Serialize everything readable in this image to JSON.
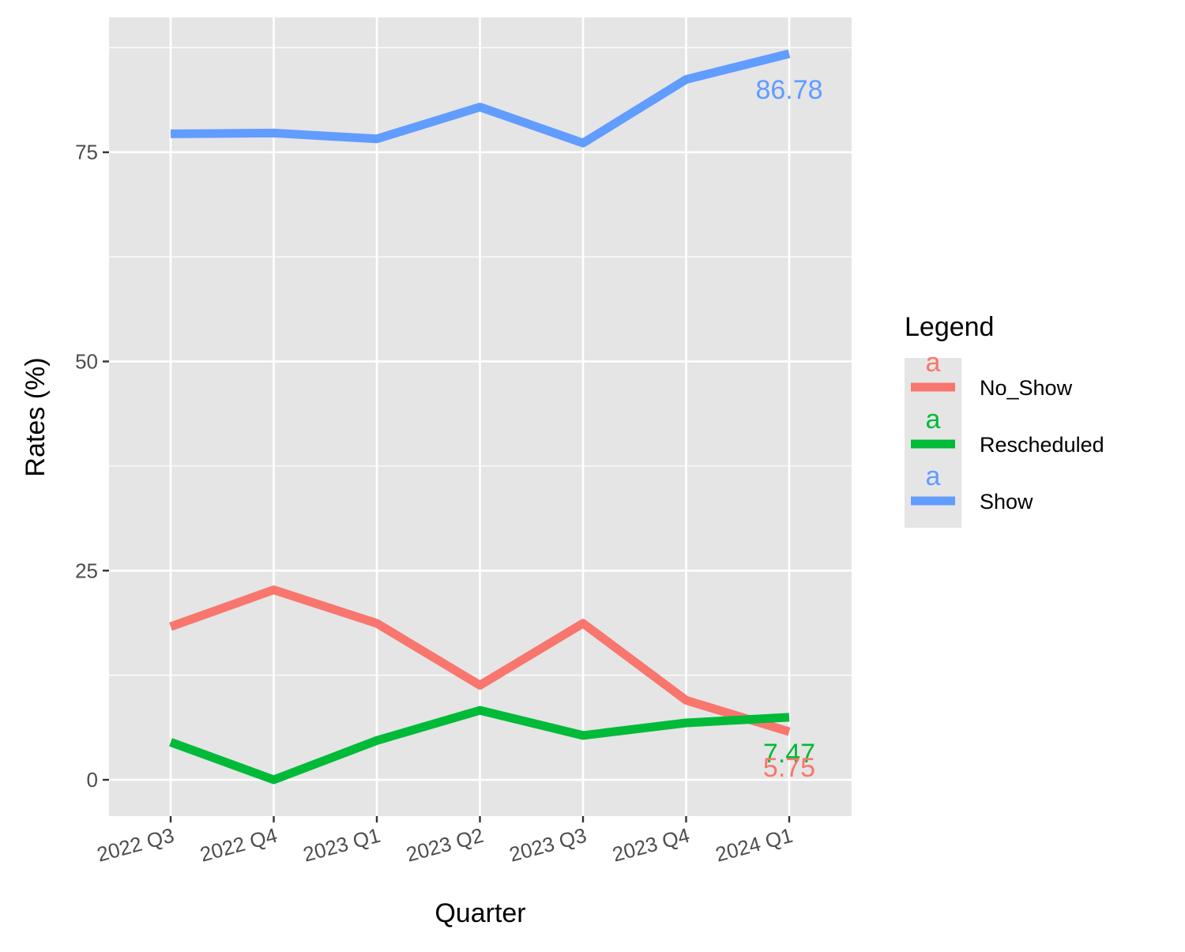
{
  "chart_data": {
    "type": "line",
    "categories": [
      "2022 Q3",
      "2022 Q4",
      "2023 Q1",
      "2023 Q2",
      "2023 Q3",
      "2023 Q4",
      "2024 Q1"
    ],
    "series": [
      {
        "name": "No_Show",
        "color": "#F8766D",
        "values": [
          18.3,
          22.7,
          18.7,
          11.3,
          18.7,
          9.5,
          5.75
        ]
      },
      {
        "name": "Rescheduled",
        "color": "#00BA38",
        "values": [
          4.5,
          0.0,
          4.7,
          8.3,
          5.3,
          6.8,
          7.47
        ]
      },
      {
        "name": "Show",
        "color": "#619CFF",
        "values": [
          77.2,
          77.3,
          76.6,
          80.4,
          76.1,
          83.7,
          86.78
        ]
      }
    ],
    "end_labels": [
      {
        "series": "Show",
        "text": "86.78"
      },
      {
        "series": "Rescheduled",
        "text": "7.47"
      },
      {
        "series": "No_Show",
        "text": "5.75"
      }
    ],
    "xlabel": "Quarter",
    "ylabel": "Rates (%)",
    "ylim": [
      -4.34,
      91.12
    ],
    "yticks": [
      0,
      25,
      50,
      75
    ],
    "ytick_labels": [
      "0",
      "25",
      "50",
      "75"
    ],
    "grid": true,
    "legend": {
      "title": "Legend",
      "position": "right",
      "key_glyph": "a"
    }
  }
}
